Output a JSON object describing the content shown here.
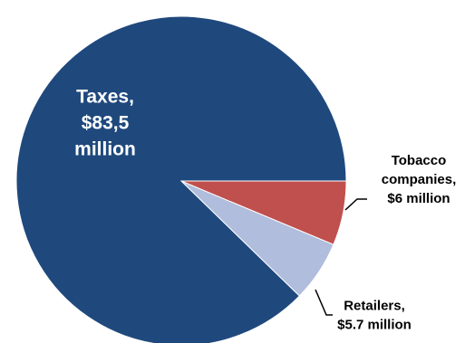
{
  "chart_data": {
    "type": "pie",
    "unit": "million",
    "slices": [
      {
        "name": "Taxes",
        "value": 83.5,
        "label_lines": [
          "Taxes,",
          "$83,5",
          "million"
        ],
        "color": "#1F497D"
      },
      {
        "name": "Retailers",
        "value": 5.7,
        "label_lines": [
          "Retailers,",
          "$5.7 million"
        ],
        "color": "#B0BDDC"
      },
      {
        "name": "Tobacco companies",
        "value": 6,
        "label_lines": [
          "Tobacco",
          "companies,",
          "$6  million"
        ],
        "color": "#C0504D"
      }
    ],
    "start_angle_deg": 0,
    "direction": "clockwise",
    "slice_border_color": "#FFFFFF",
    "legend": "none",
    "title": ""
  }
}
